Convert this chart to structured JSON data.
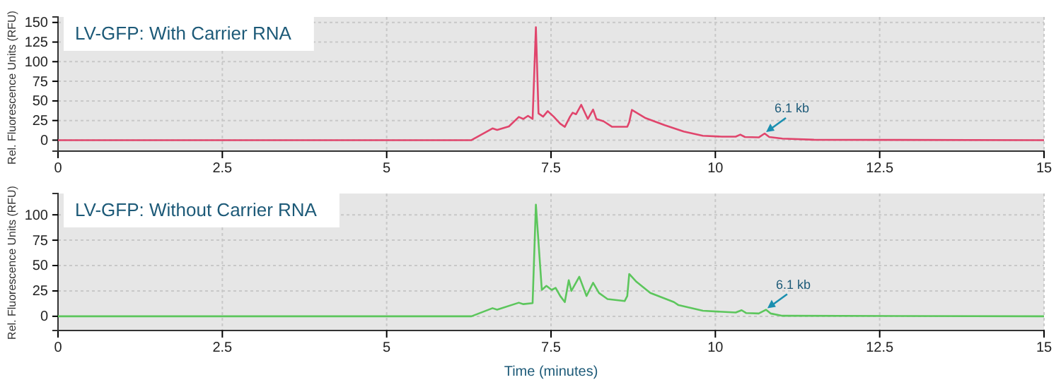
{
  "chart_data": [
    {
      "type": "line",
      "title": "LV-GFP: With Carrier RNA",
      "ylabel": "Rel. Fluorescence Units (RFU)",
      "x": [
        0,
        6.29,
        6.61,
        6.68,
        6.86,
        7.01,
        7.08,
        7.15,
        7.22,
        7.27,
        7.31,
        7.38,
        7.45,
        7.54,
        7.64,
        7.71,
        7.79,
        7.83,
        7.88,
        7.96,
        8.06,
        8.14,
        8.19,
        8.3,
        8.43,
        8.66,
        8.69,
        8.73,
        8.94,
        9.23,
        9.52,
        9.81,
        10.1,
        10.31,
        10.38,
        10.45,
        10.66,
        10.75,
        10.82,
        11.02,
        11.5,
        15
      ],
      "series": [
        {
          "color": "#e0456c",
          "values": [
            0,
            0,
            15,
            13,
            17.5,
            29.5,
            27,
            31,
            27,
            144,
            34,
            30,
            37,
            30,
            21,
            17,
            30,
            35,
            33,
            45,
            27,
            39,
            27,
            24,
            17,
            17,
            23,
            38.5,
            28,
            19,
            11,
            5.6,
            4.5,
            4.5,
            7,
            4,
            3.5,
            8.5,
            4,
            2,
            0.5,
            0
          ]
        }
      ],
      "xlim": [
        0,
        15
      ],
      "xticks": [
        0,
        2.5,
        5,
        7.5,
        10,
        12.5,
        15
      ],
      "ylim": [
        -14,
        157
      ],
      "yticks": [
        0,
        25,
        50,
        75,
        100,
        125,
        150
      ],
      "grid": true,
      "marker": "none",
      "line_style": "solid",
      "annotations": [
        {
          "text": "6.1 kb",
          "x": 10.75,
          "y": 8.5
        }
      ]
    },
    {
      "type": "line",
      "title": "LV-GFP: Without Carrier RNA",
      "ylabel": "Rel. Fluorescence Units (RFU)",
      "xlabel": "Time (minutes)",
      "x": [
        0,
        6.29,
        6.61,
        6.68,
        7.01,
        7.08,
        7.22,
        7.27,
        7.36,
        7.43,
        7.51,
        7.57,
        7.64,
        7.71,
        7.77,
        7.81,
        7.93,
        8.04,
        8.14,
        8.23,
        8.36,
        8.62,
        8.66,
        8.69,
        8.8,
        9.01,
        9.37,
        9.44,
        9.81,
        10.31,
        10.4,
        10.47,
        10.66,
        10.77,
        10.84,
        11.02,
        15
      ],
      "series": [
        {
          "color": "#5cc65c",
          "values": [
            0,
            0,
            8,
            6.5,
            13.4,
            12,
            13,
            110,
            26,
            30,
            26,
            28,
            20,
            14,
            35.6,
            25,
            39,
            20,
            33,
            23,
            17,
            15,
            20,
            41.7,
            34,
            23,
            14,
            11,
            5.5,
            3.7,
            6,
            3.2,
            2.8,
            6.5,
            2.8,
            0.5,
            0
          ]
        }
      ],
      "xlim": [
        0,
        15
      ],
      "xticks": [
        0,
        2.5,
        5,
        7.5,
        10,
        12.5,
        15
      ],
      "ylim": [
        -14,
        121
      ],
      "yticks": [
        0,
        25,
        50,
        75,
        100
      ],
      "grid": true,
      "marker": "none",
      "line_style": "solid",
      "annotations": [
        {
          "text": "6.1 kb",
          "x": 10.77,
          "y": 6.5
        }
      ]
    }
  ]
}
